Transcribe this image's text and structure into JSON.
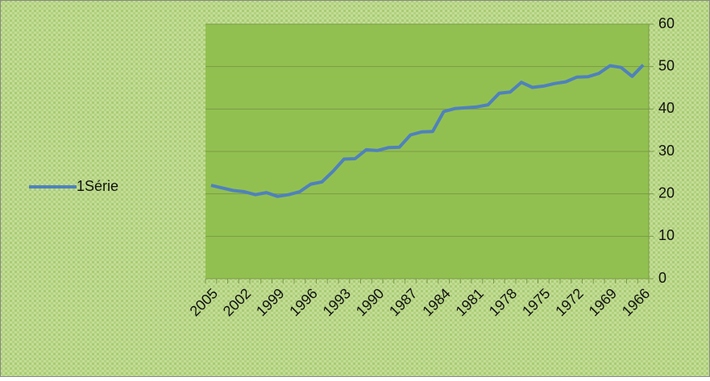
{
  "chart_data": {
    "type": "line",
    "categories": [
      "2005",
      null,
      null,
      "2002",
      null,
      null,
      "1999",
      null,
      null,
      "1996",
      null,
      null,
      "1993",
      null,
      null,
      "1990",
      null,
      null,
      "1987",
      null,
      null,
      "1984",
      null,
      null,
      "1981",
      null,
      null,
      "1978",
      null,
      null,
      "1975",
      null,
      null,
      "1972",
      null,
      null,
      "1969",
      null,
      null,
      "1966"
    ],
    "series": [
      {
        "name": "1Série",
        "color": "#4f81bd",
        "values": [
          22.0,
          21.4,
          20.8,
          20.5,
          19.8,
          20.3,
          19.4,
          19.8,
          20.5,
          22.3,
          22.8,
          25.3,
          28.2,
          28.3,
          30.4,
          30.2,
          30.9,
          31.0,
          33.9,
          34.6,
          34.7,
          39.4,
          40.1,
          40.3,
          40.5,
          41.0,
          43.7,
          44.0,
          46.3,
          45.1,
          45.4,
          46.0,
          46.4,
          47.5,
          47.6,
          48.4,
          50.2,
          49.8,
          47.7,
          50.4
        ]
      }
    ],
    "ylim": [
      0,
      60
    ],
    "yticks": [
      0,
      10,
      20,
      30,
      40,
      50,
      60
    ],
    "grid": true,
    "legend": "left",
    "plot_color": "#92c050",
    "y_axis_side": "right"
  }
}
